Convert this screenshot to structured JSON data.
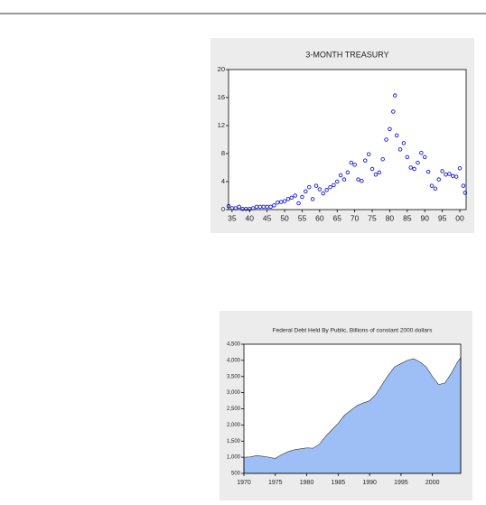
{
  "chart_data": [
    {
      "type": "scatter",
      "title": "3-MONTH TREASURY",
      "color": "#1a1adc",
      "x": [
        1934,
        1935,
        1936,
        1937,
        1938,
        1939,
        1940,
        1941,
        1942,
        1943,
        1944,
        1945,
        1946,
        1947,
        1948,
        1949,
        1950,
        1951,
        1952,
        1953,
        1954,
        1955,
        1956,
        1957,
        1958,
        1959,
        1960,
        1961,
        1962,
        1963,
        1964,
        1965,
        1966,
        1967,
        1968,
        1969,
        1970,
        1971,
        1972,
        1973,
        1974,
        1975,
        1976,
        1977,
        1978,
        1979,
        1980,
        1981,
        1981.5,
        1982,
        1983,
        1984,
        1985,
        1986,
        1987,
        1988,
        1989,
        1990,
        1991,
        1992,
        1993,
        1994,
        1995,
        1996,
        1997,
        1998,
        1999,
        2000,
        2001,
        2001.5
      ],
      "values": [
        0.5,
        0.2,
        0.2,
        0.4,
        0.1,
        0.1,
        0.1,
        0.2,
        0.4,
        0.4,
        0.4,
        0.4,
        0.4,
        0.6,
        1.0,
        1.1,
        1.2,
        1.5,
        1.7,
        2.0,
        0.9,
        1.8,
        2.6,
        3.2,
        1.5,
        3.4,
        2.9,
        2.3,
        2.8,
        3.2,
        3.5,
        4.0,
        4.9,
        4.3,
        5.3,
        6.7,
        6.4,
        4.3,
        4.1,
        7.0,
        7.9,
        5.8,
        5.0,
        5.3,
        7.2,
        10.0,
        11.5,
        14.0,
        16.3,
        10.6,
        8.6,
        9.5,
        7.5,
        6.0,
        5.8,
        6.7,
        8.1,
        7.5,
        5.4,
        3.4,
        3.0,
        4.3,
        5.5,
        5.0,
        5.1,
        4.8,
        4.7,
        5.9,
        3.4,
        2.4
      ],
      "xlim": [
        1934,
        2001.8
      ],
      "ylim": [
        0,
        20
      ],
      "xticks": [
        {
          "value": 1935,
          "label": "35"
        },
        {
          "value": 1940,
          "label": "40"
        },
        {
          "value": 1945,
          "label": "45"
        },
        {
          "value": 1950,
          "label": "50"
        },
        {
          "value": 1955,
          "label": "55"
        },
        {
          "value": 1960,
          "label": "60"
        },
        {
          "value": 1965,
          "label": "65"
        },
        {
          "value": 1970,
          "label": "70"
        },
        {
          "value": 1975,
          "label": "75"
        },
        {
          "value": 1980,
          "label": "80"
        },
        {
          "value": 1985,
          "label": "85"
        },
        {
          "value": 1990,
          "label": "90"
        },
        {
          "value": 1995,
          "label": "95"
        },
        {
          "value": 2000,
          "label": "00"
        }
      ],
      "yticks": [
        0,
        4,
        8,
        12,
        16,
        20
      ]
    },
    {
      "type": "area",
      "title": "Federal Debt Held By Public, Billions of constant 2000 dollars",
      "color": "#9dbff5",
      "x": [
        1970,
        1971,
        1972,
        1973,
        1974,
        1975,
        1976,
        1977,
        1978,
        1979,
        1980,
        1981,
        1982,
        1983,
        1984,
        1985,
        1986,
        1987,
        1988,
        1989,
        1990,
        1991,
        1992,
        1993,
        1994,
        1995,
        1996,
        1997,
        1998,
        1999,
        2000,
        2001,
        2002,
        2003,
        2004,
        2004.5
      ],
      "values": [
        1000,
        1010,
        1050,
        1030,
        1000,
        960,
        1080,
        1170,
        1230,
        1260,
        1290,
        1280,
        1400,
        1650,
        1850,
        2050,
        2300,
        2450,
        2600,
        2680,
        2750,
        2950,
        3250,
        3550,
        3800,
        3900,
        4000,
        4050,
        3950,
        3800,
        3500,
        3250,
        3300,
        3600,
        3950,
        4080
      ],
      "xlim": [
        1970,
        2004.5
      ],
      "ylim": [
        500,
        4500
      ],
      "xticks": [
        1970,
        1975,
        1980,
        1985,
        1990,
        1995,
        2000
      ],
      "yticks": [
        500,
        {
          "value": 1000,
          "label": "1,000"
        },
        {
          "value": 1500,
          "label": "1,500"
        },
        {
          "value": 2000,
          "label": "2,000"
        },
        {
          "value": 2500,
          "label": "2,500"
        },
        {
          "value": 3000,
          "label": "3,000"
        },
        {
          "value": 3500,
          "label": "3,500"
        },
        {
          "value": 4000,
          "label": "4,000"
        },
        {
          "value": 4500,
          "label": "4,500"
        }
      ]
    }
  ]
}
